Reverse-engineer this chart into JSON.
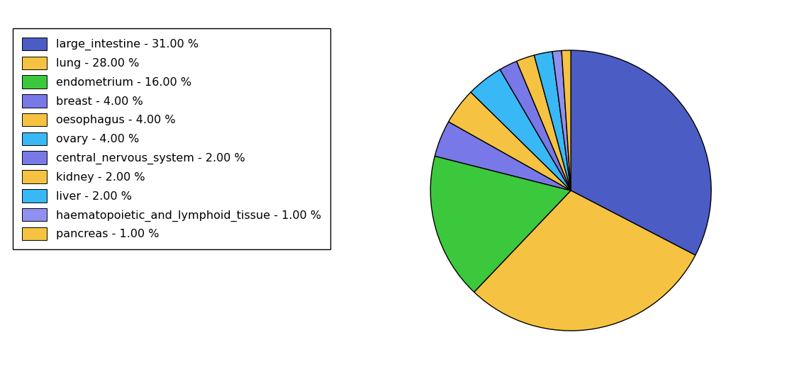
{
  "labels": [
    "large_intestine",
    "lung",
    "endometrium",
    "breast",
    "oesophagus",
    "ovary",
    "central_nervous_system",
    "kidney",
    "liver",
    "haematopoietic_and_lymphoid_tissue",
    "pancreas"
  ],
  "values": [
    31,
    28,
    16,
    4,
    4,
    4,
    2,
    2,
    2,
    1,
    1
  ],
  "colors": [
    "#4b5cc4",
    "#f5c242",
    "#3cc83c",
    "#7878e8",
    "#f5c242",
    "#38b8f5",
    "#7878e8",
    "#f5c242",
    "#38b8f5",
    "#9090f0",
    "#f5c242"
  ],
  "legend_labels": [
    "large_intestine - 31.00 %",
    "lung - 28.00 %",
    "endometrium - 16.00 %",
    "breast - 4.00 %",
    "oesophagus - 4.00 %",
    "ovary - 4.00 %",
    "central_nervous_system - 2.00 %",
    "kidney - 2.00 %",
    "liver - 2.00 %",
    "haematopoietic_and_lymphoid_tissue - 1.00 %",
    "pancreas - 1.00 %"
  ],
  "figsize": [
    11.34,
    5.38
  ],
  "dpi": 100,
  "startangle": 90,
  "legend_fontsize": 11.5
}
